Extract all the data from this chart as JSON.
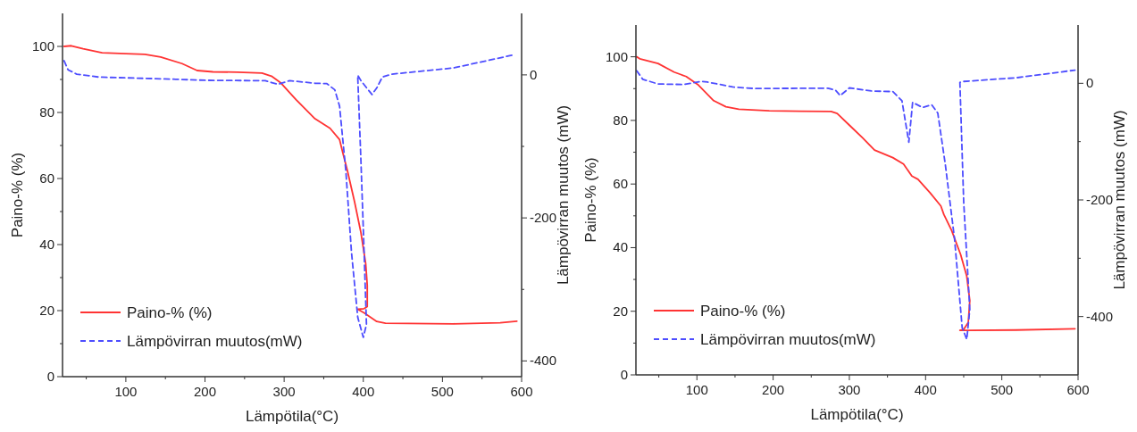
{
  "chart_data": [
    {
      "type": "line",
      "xlabel": "Lämpötila(°C)",
      "ylabel": "Paino-% (%)",
      "y2label": "Lämpövirran muutos (mW)",
      "legend": "bottom left",
      "xlim": [
        20,
        600
      ],
      "ylim": [
        0,
        110
      ],
      "y2lim": [
        -422,
        86
      ],
      "xticks": [
        {
          "value": 50,
          "label": null
        },
        100,
        {
          "value": 150,
          "label": null
        },
        200,
        {
          "value": 250,
          "label": null
        },
        300,
        {
          "value": 350,
          "label": null
        },
        400,
        {
          "value": 450,
          "label": null
        },
        500,
        {
          "value": 550,
          "label": null
        },
        600
      ],
      "yticks": [
        0,
        {
          "value": 10,
          "label": null
        },
        20,
        {
          "value": 30,
          "label": null
        },
        40,
        {
          "value": 50,
          "label": null
        },
        60,
        {
          "value": 70,
          "label": null
        },
        80,
        {
          "value": 90,
          "label": null
        },
        100
      ],
      "y2ticks": [
        {
          "value": -400,
          "label": "-400"
        },
        {
          "value": -300,
          "label": null
        },
        {
          "value": -200,
          "label": "-200"
        },
        {
          "value": -100,
          "label": null
        },
        0
      ],
      "series": [
        {
          "name": "Paino-% (%)",
          "color": "#ff3333",
          "line_style": "solid",
          "x": [
            22,
            31,
            46,
            70,
            100,
            124,
            144,
            171,
            190,
            210,
            241,
            272,
            284,
            296,
            315,
            339,
            358,
            370,
            374,
            380,
            389,
            397,
            403,
            405,
            405,
            401,
            393,
            401,
            417,
            428,
            514,
            573,
            594
          ],
          "values": [
            100,
            100.2,
            99.3,
            98.1,
            97.8,
            97.6,
            96.8,
            94.8,
            92.7,
            92.3,
            92.2,
            91.9,
            91.0,
            88.9,
            83.9,
            78.1,
            75.2,
            71.8,
            67.9,
            62.3,
            52.9,
            43.6,
            34.3,
            27.7,
            21.2,
            20.6,
            20.4,
            19.3,
            16.7,
            16.2,
            16.0,
            16.3,
            16.8
          ]
        },
        {
          "name": "Lämpövirran muutos(mW)",
          "color": "#4d4dff",
          "line_style": "dashed",
          "axis": "y2",
          "x": [
            22,
            27,
            38,
            66,
            100,
            163,
            202,
            276,
            292,
            307,
            339,
            354,
            364,
            370,
            378,
            385,
            393,
            400,
            404,
            401,
            397,
            393,
            393,
            397,
            411,
            417,
            424,
            436,
            514,
            592
          ],
          "values": [
            19.8,
            7.1,
            1.0,
            -3.1,
            -4.1,
            -6.1,
            -7.6,
            -8.1,
            -13.2,
            -8.1,
            -11.7,
            -12.2,
            -20.9,
            -43.8,
            -135,
            -247,
            -339,
            -367,
            -349,
            -247,
            -120,
            -3.1,
            -0.5,
            -8.1,
            -27.5,
            -18.3,
            -3.1,
            1.0,
            9.7,
            28.5
          ]
        }
      ]
    },
    {
      "type": "line",
      "xlabel": "Lämpötila(°C)",
      "ylabel": "Paino-% (%)",
      "y2label": "Lämpövirran muutos (mW)",
      "legend": "bottom left",
      "xlim": [
        20,
        600
      ],
      "ylim": [
        0,
        110
      ],
      "y2lim": [
        -500,
        100
      ],
      "xticks": [
        {
          "value": 50,
          "label": null
        },
        100,
        {
          "value": 150,
          "label": null
        },
        200,
        {
          "value": 250,
          "label": null
        },
        300,
        {
          "value": 350,
          "label": null
        },
        400,
        {
          "value": 450,
          "label": null
        },
        500,
        {
          "value": 550,
          "label": null
        },
        600
      ],
      "yticks": [
        0,
        {
          "value": 10,
          "label": null
        },
        20,
        {
          "value": 30,
          "label": null
        },
        40,
        {
          "value": 50,
          "label": null
        },
        60,
        {
          "value": 70,
          "label": null
        },
        80,
        {
          "value": 90,
          "label": null
        },
        100
      ],
      "y2ticks": [
        {
          "value": -400,
          "label": "-400"
        },
        {
          "value": -300,
          "label": null
        },
        {
          "value": -200,
          "label": "-200"
        },
        {
          "value": -100,
          "label": null
        },
        0
      ],
      "series": [
        {
          "name": "Paino-% (%)",
          "color": "#ff3333",
          "line_style": "solid",
          "x": [
            21,
            25,
            49,
            70,
            86,
            102,
            122,
            138,
            155,
            195,
            236,
            276,
            284,
            300,
            317,
            333,
            357,
            371,
            382,
            390,
            406,
            420,
            424,
            434,
            446,
            454,
            458,
            456,
            450,
            445,
            458,
            519,
            596
          ],
          "values": [
            100,
            99.4,
            97.9,
            95.2,
            93.8,
            91.1,
            86.2,
            84.3,
            83.5,
            83.0,
            82.9,
            82.8,
            82.2,
            78.5,
            74.6,
            70.7,
            68.3,
            66.3,
            62.5,
            61.5,
            57.2,
            53.1,
            50.4,
            45.5,
            37.8,
            31.0,
            23.3,
            16.5,
            14.3,
            14.0,
            14.0,
            14.1,
            14.5
          ]
        },
        {
          "name": "Lämpövirran muutos(mW)",
          "color": "#4d4dff",
          "line_style": "dashed",
          "axis": "y2",
          "x": [
            21,
            29,
            49,
            82,
            106,
            114,
            147,
            175,
            272,
            282,
            288,
            300,
            329,
            357,
            369,
            378,
            383,
            396,
            408,
            416,
            426,
            438,
            448,
            454,
            458,
            450,
            445,
            450,
            519,
            596
          ],
          "values": [
            21.6,
            6.8,
            -1.1,
            -2.1,
            3.2,
            2.1,
            -6.3,
            -8.9,
            -8.4,
            -12.1,
            -21.1,
            -7.9,
            -13.2,
            -14.2,
            -30.0,
            -101,
            -32.6,
            -41.6,
            -36.8,
            -51.1,
            -140.5,
            -267,
            -419,
            -439,
            -388,
            -204,
            1.6,
            3.2,
            9.5,
            22.6
          ]
        }
      ]
    }
  ]
}
